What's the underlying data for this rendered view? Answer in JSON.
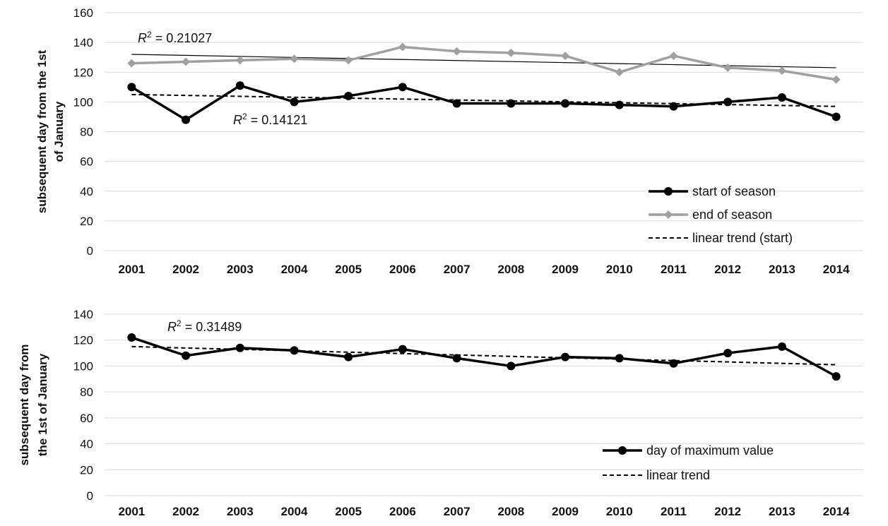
{
  "chart_data": [
    {
      "type": "line",
      "ylabel": "subsequent day from the 1st of January",
      "ylabel_lines": [
        "subsequent day from the 1st",
        "of January"
      ],
      "categories": [
        "2001",
        "2002",
        "2003",
        "2004",
        "2005",
        "2006",
        "2007",
        "2008",
        "2009",
        "2010",
        "2011",
        "2012",
        "2013",
        "2014"
      ],
      "ylim": [
        0,
        160
      ],
      "yticks": [
        0,
        20,
        40,
        60,
        80,
        100,
        120,
        140,
        160
      ],
      "grid": true,
      "legend_position": "bottom-right",
      "series": [
        {
          "name": "start of season",
          "color": "#000000",
          "marker": "circle",
          "values": [
            110,
            88,
            111,
            100,
            104,
            110,
            99,
            99,
            99,
            98,
            97,
            100,
            103,
            90
          ]
        },
        {
          "name": "end of season",
          "color": "#a0a0a0",
          "marker": "diamond",
          "values": [
            126,
            127,
            128,
            129,
            128,
            137,
            134,
            133,
            131,
            120,
            131,
            123,
            121,
            115
          ]
        }
      ],
      "trendlines": [
        {
          "name": "linear trend (start)",
          "style": "dashed",
          "color": "#000000",
          "values": [
            105,
            97
          ],
          "in_legend": true
        },
        {
          "style": "solid-thin",
          "color": "#000000",
          "values": [
            132,
            123
          ],
          "in_legend": false
        }
      ],
      "annotations": [
        {
          "r2_label": "R",
          "sup": "2",
          "value_text": " = 0.21027",
          "anchor": "above-end-trend"
        },
        {
          "r2_label": "R",
          "sup": "2",
          "value_text": " = 0.14121",
          "anchor": "below-start-series"
        }
      ]
    },
    {
      "type": "line",
      "ylabel": "subsequent day from the 1st of January",
      "ylabel_lines": [
        "subsequent day from",
        "the 1st of January"
      ],
      "categories": [
        "2001",
        "2002",
        "2003",
        "2004",
        "2005",
        "2006",
        "2007",
        "2008",
        "2009",
        "2010",
        "2011",
        "2012",
        "2013",
        "2014"
      ],
      "ylim": [
        0,
        140
      ],
      "yticks": [
        0,
        20,
        40,
        60,
        80,
        100,
        120,
        140
      ],
      "grid": true,
      "legend_position": "bottom-right",
      "series": [
        {
          "name": "day of maximum value",
          "color": "#000000",
          "marker": "circle",
          "values": [
            122,
            108,
            114,
            112,
            107,
            113,
            106,
            100,
            107,
            106,
            102,
            110,
            115,
            92
          ]
        }
      ],
      "trendlines": [
        {
          "name": "linear trend",
          "style": "dashed",
          "color": "#000000",
          "values": [
            115,
            101
          ],
          "in_legend": true
        }
      ],
      "annotations": [
        {
          "r2_label": "R",
          "sup": "2",
          "value_text": " = 0.31489",
          "anchor": "above-series"
        }
      ]
    }
  ]
}
